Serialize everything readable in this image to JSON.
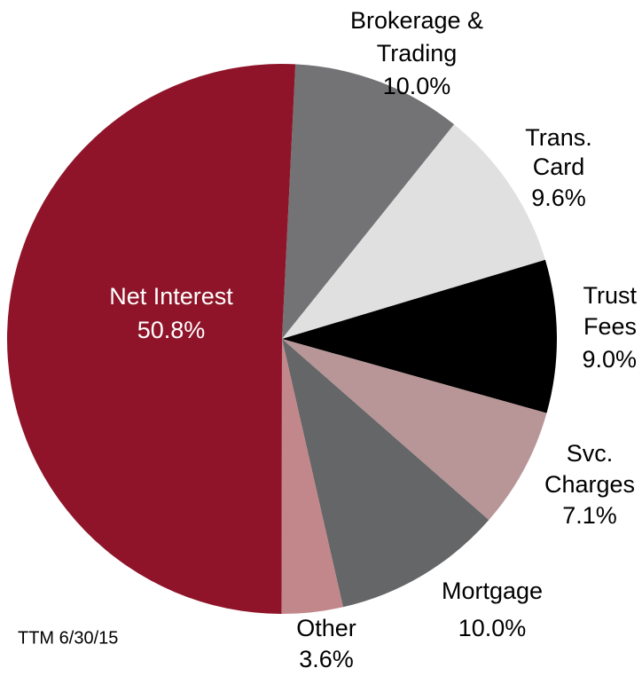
{
  "chart_data": {
    "type": "pie",
    "categories": [
      [
        "Brokerage &",
        "Trading"
      ],
      [
        "Trans.",
        "Card"
      ],
      [
        "Trust",
        "Fees"
      ],
      [
        "Svc.",
        "Charges"
      ],
      [
        "Mortgage"
      ],
      [
        "Other"
      ],
      [
        "Net Interest"
      ]
    ],
    "values": [
      10.0,
      9.6,
      9.0,
      7.1,
      10.0,
      3.6,
      50.8
    ],
    "value_labels": [
      "10.0%",
      "9.6%",
      "9.0%",
      "7.1%",
      "10.0%",
      "3.6%",
      "50.8%"
    ],
    "colors": [
      "#737375",
      "#e0e0e0",
      "#000000",
      "#b89697",
      "#656668",
      "#c2878b",
      "#8f1429"
    ],
    "annotation": "TTM 6/30/15"
  }
}
